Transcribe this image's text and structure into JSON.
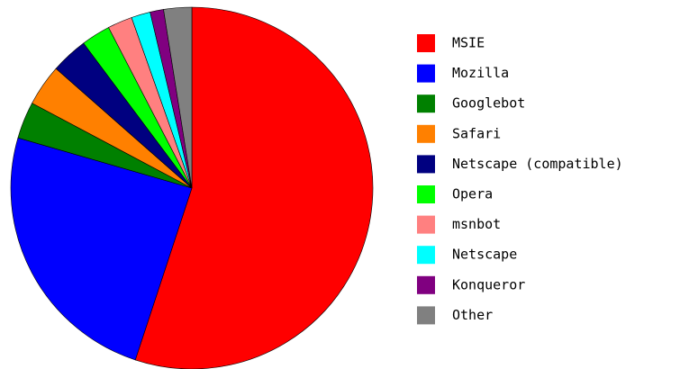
{
  "chart_data": {
    "type": "pie",
    "categories": [
      "MSIE",
      "Mozilla",
      "Googlebot",
      "Safari",
      "Netscape (compatible)",
      "Opera",
      "msnbot",
      "Netscape",
      "Konqueror",
      "Other"
    ],
    "values": [
      55,
      24.4,
      3.3,
      3.7,
      3.3,
      2.6,
      2.2,
      1.7,
      1.2,
      2.5
    ],
    "colors": [
      "#ff0000",
      "#0000ff",
      "#008000",
      "#ff8000",
      "#000080",
      "#00ff00",
      "#ff8080",
      "#00ffff",
      "#800080",
      "#808080"
    ],
    "legend": "right"
  }
}
